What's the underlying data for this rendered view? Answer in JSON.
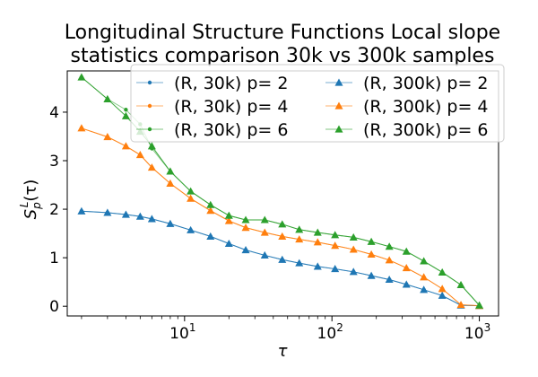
{
  "chart_data": {
    "type": "line",
    "title_line1": "Longitudinal Structure Functions Local slope",
    "title_line2": "statistics comparison 30k vs 300k samples",
    "xlabel": "τ",
    "ylabel_main": "S",
    "ylabel_sub": "p",
    "ylabel_sup": "L",
    "ylabel_arg": "(τ)",
    "x_scale": "log",
    "xlim": [
      1.6,
      1350
    ],
    "ylim": [
      -0.2,
      4.85
    ],
    "x_ticks": [
      {
        "value": 10,
        "base": "10",
        "exp": "1"
      },
      {
        "value": 100,
        "base": "10",
        "exp": "2"
      },
      {
        "value": 1000,
        "base": "10",
        "exp": "3"
      }
    ],
    "y_ticks": [
      0,
      1,
      2,
      3,
      4
    ],
    "legend_position": "top-right",
    "grid": false,
    "series": [
      {
        "name": "(R, 30k) p= 2",
        "color": "#1f77b4",
        "marker": "dot",
        "x": [
          2,
          3,
          4,
          5,
          6,
          8,
          11,
          15,
          20,
          26,
          35,
          46,
          60,
          80,
          105,
          140,
          185,
          245,
          320,
          420,
          560,
          750,
          1000
        ],
        "y": [
          1.96,
          1.93,
          1.89,
          1.85,
          1.8,
          1.7,
          1.57,
          1.44,
          1.29,
          1.16,
          1.05,
          0.96,
          0.89,
          0.82,
          0.77,
          0.71,
          0.63,
          0.55,
          0.45,
          0.34,
          0.22,
          0.02,
          0.01
        ]
      },
      {
        "name": "(R, 30k) p= 4",
        "color": "#ff7f0e",
        "marker": "dot",
        "x": [
          2,
          3,
          4,
          5,
          6,
          8,
          11,
          15,
          20,
          26,
          35,
          46,
          60,
          80,
          105,
          140,
          185,
          245,
          320,
          420,
          560,
          750,
          1000
        ],
        "y": [
          3.67,
          3.49,
          3.3,
          3.12,
          2.86,
          2.53,
          2.22,
          1.97,
          1.76,
          1.62,
          1.52,
          1.44,
          1.38,
          1.32,
          1.25,
          1.17,
          1.07,
          0.95,
          0.79,
          0.6,
          0.36,
          0.03,
          0.01
        ]
      },
      {
        "name": "(R, 30k) p= 6",
        "color": "#2ca02c",
        "marker": "dot",
        "x": [
          2,
          3,
          4,
          5,
          6,
          8,
          11,
          15,
          20,
          26,
          35,
          46,
          60,
          80,
          105,
          140,
          185,
          245,
          320,
          420,
          560,
          750,
          1000
        ],
        "y": [
          4.72,
          4.27,
          4.05,
          3.75,
          3.25,
          2.78,
          2.37,
          2.09,
          1.87,
          1.78,
          1.78,
          1.69,
          1.58,
          1.52,
          1.47,
          1.42,
          1.33,
          1.23,
          1.13,
          0.93,
          0.7,
          0.44,
          0.02
        ]
      },
      {
        "name": "(R, 300k) p= 2",
        "color": "#1f77b4",
        "marker": "triangle",
        "x": [
          2,
          3,
          4,
          5,
          6,
          8,
          11,
          15,
          20,
          26,
          35,
          46,
          60,
          80,
          105,
          140,
          185,
          245,
          320,
          420,
          560,
          750,
          1000
        ],
        "y": [
          1.96,
          1.93,
          1.89,
          1.85,
          1.8,
          1.7,
          1.57,
          1.44,
          1.29,
          1.16,
          1.05,
          0.96,
          0.89,
          0.82,
          0.77,
          0.71,
          0.63,
          0.55,
          0.45,
          0.34,
          0.22,
          0.02,
          0.01
        ]
      },
      {
        "name": "(R, 300k) p= 4",
        "color": "#ff7f0e",
        "marker": "triangle",
        "x": [
          2,
          3,
          4,
          5,
          6,
          8,
          11,
          15,
          20,
          26,
          35,
          46,
          60,
          80,
          105,
          140,
          185,
          245,
          320,
          420,
          560,
          750,
          1000
        ],
        "y": [
          3.67,
          3.49,
          3.3,
          3.12,
          2.86,
          2.53,
          2.22,
          1.97,
          1.76,
          1.62,
          1.52,
          1.44,
          1.38,
          1.32,
          1.25,
          1.17,
          1.07,
          0.95,
          0.79,
          0.6,
          0.36,
          0.03,
          0.01
        ]
      },
      {
        "name": "(R, 300k) p= 6",
        "color": "#2ca02c",
        "marker": "triangle",
        "x": [
          2,
          3,
          4,
          5,
          6,
          8,
          11,
          15,
          20,
          26,
          35,
          46,
          60,
          80,
          105,
          140,
          185,
          245,
          320,
          420,
          560,
          750,
          1000
        ],
        "y": [
          4.72,
          4.27,
          3.92,
          3.6,
          3.3,
          2.78,
          2.37,
          2.09,
          1.87,
          1.78,
          1.78,
          1.69,
          1.58,
          1.52,
          1.47,
          1.42,
          1.33,
          1.23,
          1.13,
          0.93,
          0.7,
          0.44,
          0.02
        ]
      }
    ]
  }
}
